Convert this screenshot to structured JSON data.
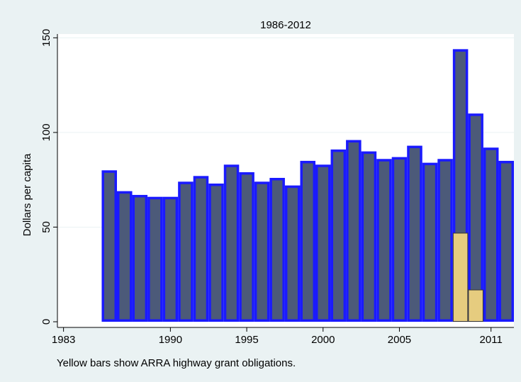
{
  "chart_data": {
    "type": "bar",
    "title": "1986-2012",
    "ylabel": "Dollars per capita",
    "xlabel": "",
    "note": "Yellow bars show ARRA highway grant obligations.",
    "xlim": [
      1982.6,
      2012.5
    ],
    "ylim": [
      -3,
      152
    ],
    "xticks": [
      1983,
      1990,
      1995,
      2000,
      2005,
      2011
    ],
    "yticks": [
      0,
      50,
      100,
      150
    ],
    "grid": true,
    "legend": "none",
    "bar_width": 1,
    "series": [
      {
        "x": [
          1986,
          1987,
          1988,
          1989,
          1990,
          1991,
          1992,
          1993,
          1994,
          1995,
          1996,
          1997,
          1998,
          1999,
          2000,
          2001,
          2002,
          2003,
          2004,
          2005,
          2006,
          2007,
          2008,
          2009,
          2010,
          2011,
          2012
        ],
        "values": [
          80,
          69,
          67,
          66,
          66,
          74,
          77,
          73,
          83,
          79,
          74,
          76,
          72,
          85,
          83,
          91,
          96,
          90,
          86,
          87,
          93,
          84,
          86,
          144,
          110,
          92,
          85
        ],
        "fill": "#4c5a79",
        "outline": "#1a1aff"
      },
      {
        "x": [
          2009,
          2010
        ],
        "values": [
          47,
          17
        ],
        "fill": "#e6cc7f",
        "outline": "#333333"
      }
    ]
  },
  "colors": {
    "background": "#eaf2f3",
    "plot_area": "#ffffff",
    "gridline": "#eaf2f3"
  }
}
